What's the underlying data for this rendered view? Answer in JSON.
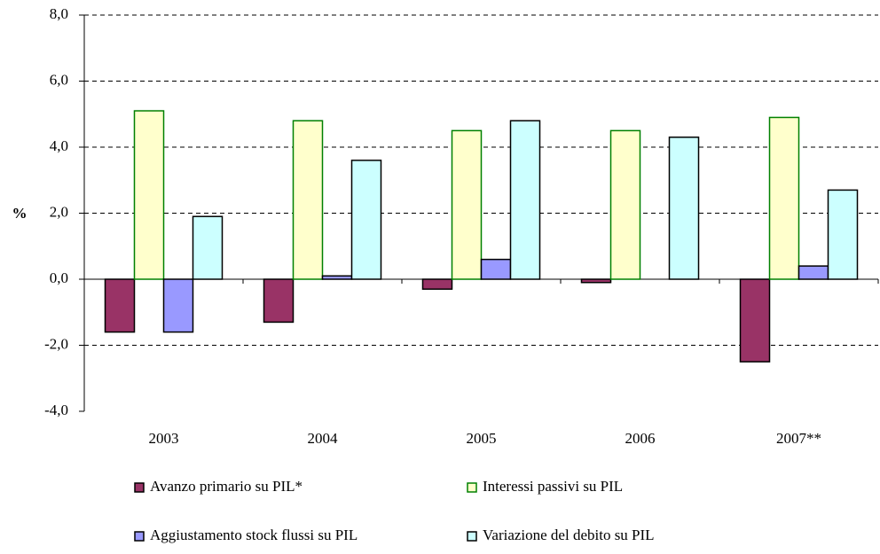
{
  "chart_data": {
    "type": "bar",
    "y_label": "%",
    "categories": [
      "2003",
      "2004",
      "2005",
      "2006",
      "2007**"
    ],
    "series": [
      {
        "name": "Avanzo primario su PIL*",
        "color": "#993366",
        "stroke": "#000000",
        "values": [
          -1.6,
          -1.3,
          -0.3,
          -0.1,
          -2.5
        ]
      },
      {
        "name": "Interessi passivi su PIL",
        "color": "#ffffcc",
        "stroke": "#008000",
        "values": [
          5.1,
          4.8,
          4.5,
          4.5,
          4.9
        ]
      },
      {
        "name": "Aggiustamento stock flussi su PIL",
        "color": "#9999ff",
        "stroke": "#000000",
        "values": [
          -1.6,
          0.1,
          0.6,
          0,
          0.4
        ]
      },
      {
        "name": "Variazione del debito su PIL",
        "color": "#ccffff",
        "stroke": "#000000",
        "values": [
          1.9,
          3.6,
          4.8,
          4.3,
          2.7
        ]
      }
    ],
    "ylim": [
      -4,
      8
    ],
    "yticks": [
      {
        "value": -4,
        "label": "-4,0"
      },
      {
        "value": -2,
        "label": "-2,0"
      },
      {
        "value": 0,
        "label": "0,0"
      },
      {
        "value": 2,
        "label": "2,0"
      },
      {
        "value": 4,
        "label": "4,0"
      },
      {
        "value": 6,
        "label": "6,0"
      },
      {
        "value": 8,
        "label": "8,0"
      }
    ],
    "grid": true
  }
}
